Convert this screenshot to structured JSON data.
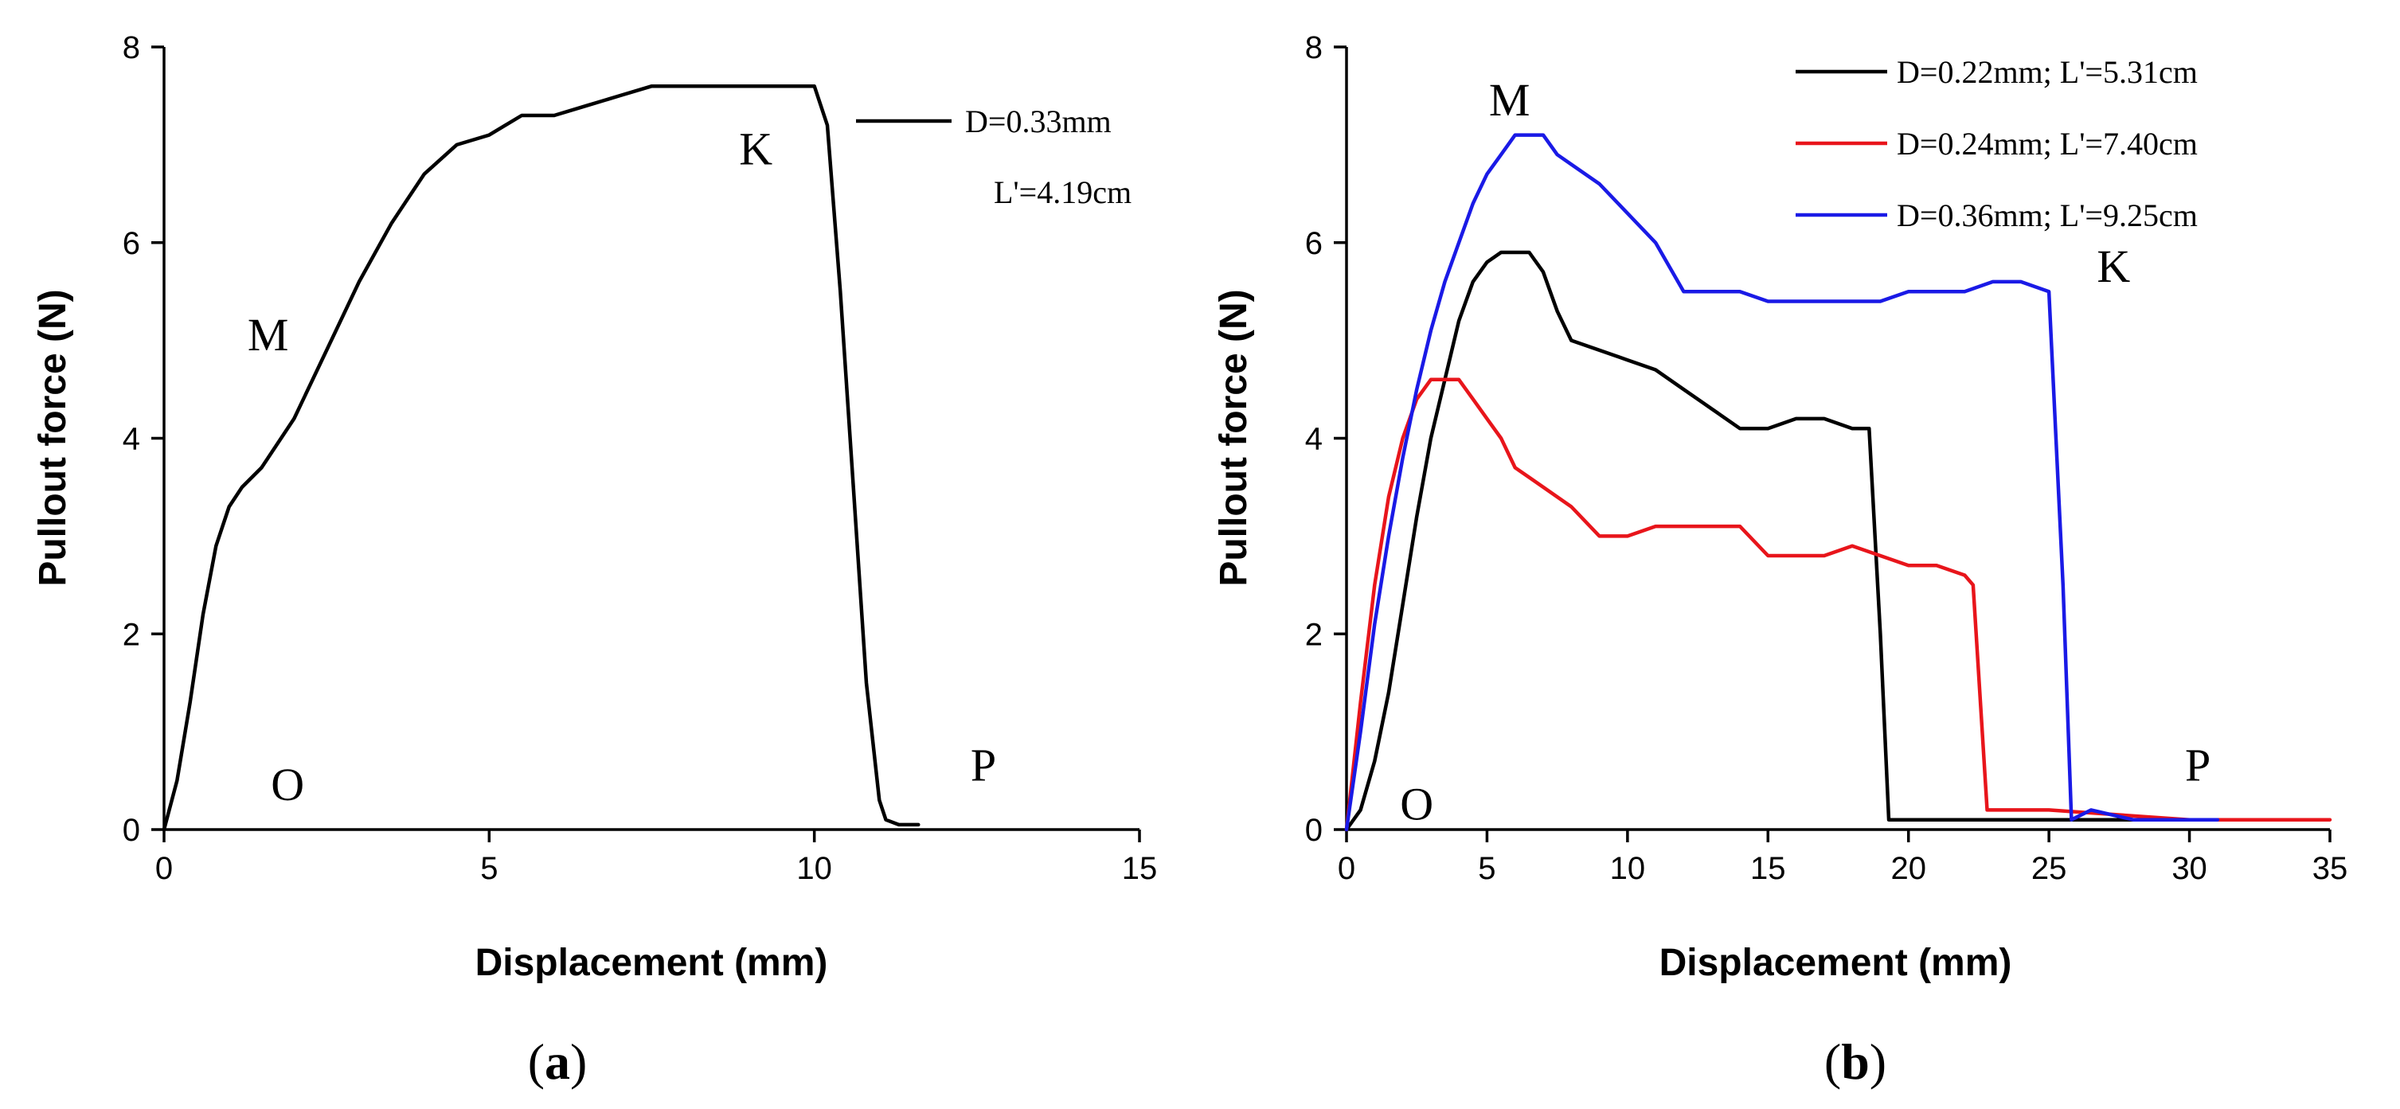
{
  "chart_data": [
    {
      "type": "line",
      "panel_label": "(a)",
      "panel_letter": "a",
      "xlabel": "Displacement (mm)",
      "ylabel": "Pullout force (N)",
      "xlim": [
        0,
        15
      ],
      "ylim": [
        0,
        8
      ],
      "xticks": [
        0,
        5,
        10,
        15
      ],
      "yticks": [
        0,
        2,
        4,
        6,
        8
      ],
      "legend": {
        "lines": [
          "D=0.33mm",
          "L'=4.19cm"
        ],
        "placement": "top-right"
      },
      "annotations": [
        {
          "text": "M",
          "x": 1.6,
          "y": 4.9
        },
        {
          "text": "K",
          "x": 9.1,
          "y": 6.8
        },
        {
          "text": "O",
          "x": 1.9,
          "y": 0.3
        },
        {
          "text": "P",
          "x": 12.6,
          "y": 0.5
        }
      ],
      "series": [
        {
          "name": "D=0.33mm; L'=4.19cm",
          "color": "#000000",
          "x": [
            0,
            0.2,
            0.4,
            0.6,
            0.8,
            1.0,
            1.2,
            1.5,
            2.0,
            2.5,
            3.0,
            3.5,
            4.0,
            4.5,
            5.0,
            5.5,
            6.0,
            6.5,
            7.0,
            7.5,
            8.0,
            9.0,
            10.0,
            10.2,
            10.4,
            10.6,
            10.8,
            11.0,
            11.1,
            11.3,
            11.6
          ],
          "y": [
            0,
            0.5,
            1.3,
            2.2,
            2.9,
            3.3,
            3.5,
            3.7,
            4.2,
            4.9,
            5.6,
            6.2,
            6.7,
            7.0,
            7.1,
            7.3,
            7.3,
            7.4,
            7.5,
            7.6,
            7.6,
            7.6,
            7.6,
            7.2,
            5.5,
            3.5,
            1.5,
            0.3,
            0.1,
            0.05,
            0.05
          ]
        }
      ]
    },
    {
      "type": "line",
      "panel_label": "(b)",
      "panel_letter": "b",
      "xlabel": "Displacement (mm)",
      "ylabel": "Pullout force (N)",
      "xlim": [
        0,
        35
      ],
      "ylim": [
        0,
        8
      ],
      "xticks": [
        0,
        5,
        10,
        15,
        20,
        25,
        30,
        35
      ],
      "yticks": [
        0,
        2,
        4,
        6,
        8
      ],
      "legend": {
        "placement": "top-right"
      },
      "annotations": [
        {
          "text": "M",
          "x": 5.8,
          "y": 7.3
        },
        {
          "text": "K",
          "x": 27.3,
          "y": 5.6
        },
        {
          "text": "O",
          "x": 2.5,
          "y": 0.1
        },
        {
          "text": "P",
          "x": 30.3,
          "y": 0.5
        }
      ],
      "series": [
        {
          "name": "D=0.22mm; L'=5.31cm",
          "color": "#000000",
          "x": [
            0,
            0.5,
            1.0,
            1.5,
            2.0,
            2.5,
            3.0,
            3.5,
            4.0,
            4.5,
            5.0,
            5.5,
            6.0,
            6.5,
            7.0,
            7.5,
            8.0,
            9.0,
            10.0,
            11.0,
            12.0,
            13.0,
            14.0,
            15.0,
            16.0,
            17.0,
            18.0,
            18.5,
            18.6,
            19.0,
            19.3,
            20.0,
            25.0,
            32.0
          ],
          "y": [
            0,
            0.2,
            0.7,
            1.4,
            2.3,
            3.2,
            4.0,
            4.6,
            5.2,
            5.6,
            5.8,
            5.9,
            5.9,
            5.9,
            5.7,
            5.3,
            5.0,
            4.9,
            4.8,
            4.7,
            4.5,
            4.3,
            4.1,
            4.1,
            4.2,
            4.2,
            4.1,
            4.1,
            4.1,
            2.0,
            0.1,
            0.1,
            0.1,
            0.1
          ]
        },
        {
          "name": "D=0.24mm; L'=7.40cm",
          "color": "#e8151b",
          "x": [
            0,
            0.5,
            1.0,
            1.5,
            2.0,
            2.5,
            3.0,
            3.5,
            4.0,
            4.5,
            5.0,
            5.5,
            6.0,
            6.5,
            7.0,
            8.0,
            9.0,
            10.0,
            11.0,
            12.0,
            13.0,
            14.0,
            15.0,
            16.0,
            17.0,
            18.0,
            19.0,
            20.0,
            21.0,
            22.0,
            22.3,
            22.8,
            25.0,
            30.0,
            35.0
          ],
          "y": [
            0,
            1.3,
            2.5,
            3.4,
            4.0,
            4.4,
            4.6,
            4.6,
            4.6,
            4.4,
            4.2,
            4.0,
            3.7,
            3.6,
            3.5,
            3.3,
            3.0,
            3.0,
            3.1,
            3.1,
            3.1,
            3.1,
            2.8,
            2.8,
            2.8,
            2.9,
            2.8,
            2.7,
            2.7,
            2.6,
            2.5,
            0.2,
            0.2,
            0.1,
            0.1
          ]
        },
        {
          "name": "D=0.36mm; L'=9.25cm",
          "color": "#1a1ae6",
          "x": [
            0,
            0.5,
            1.0,
            1.5,
            2.0,
            2.5,
            3.0,
            3.5,
            4.0,
            4.5,
            5.0,
            5.5,
            6.0,
            6.5,
            7.0,
            7.5,
            8.0,
            9.0,
            10.0,
            11.0,
            12.0,
            13.0,
            14.0,
            15.0,
            17.0,
            19.0,
            20.0,
            22.0,
            23.0,
            24.0,
            25.0,
            25.5,
            25.8,
            26.5,
            28.0,
            31.0
          ],
          "y": [
            0,
            1.0,
            2.1,
            3.0,
            3.8,
            4.5,
            5.1,
            5.6,
            6.0,
            6.4,
            6.7,
            6.9,
            7.1,
            7.1,
            7.1,
            6.9,
            6.8,
            6.6,
            6.3,
            6.0,
            5.5,
            5.5,
            5.5,
            5.4,
            5.4,
            5.4,
            5.5,
            5.5,
            5.6,
            5.6,
            5.5,
            2.5,
            0.1,
            0.2,
            0.1,
            0.1
          ]
        }
      ]
    }
  ]
}
